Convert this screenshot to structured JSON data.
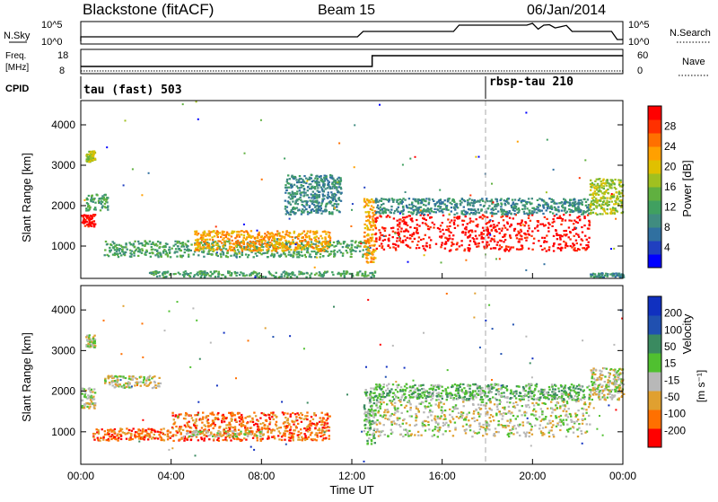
{
  "header": {
    "station": "Blackstone (fitACF)",
    "beam": "Beam 15",
    "date": "06/Jan/2014"
  },
  "top_panels": {
    "nsky_label": "N.Sky",
    "nsearch_label": "N.Search",
    "freq_label": "Freq.",
    "freq_unit": "[MHz]",
    "nave_label": "Nave",
    "cpid_label": "CPID",
    "nsky_ticks": [
      "10^5",
      "10^0"
    ],
    "nsearch_ticks": [
      "10^5",
      "10^0"
    ],
    "freq_ticks": [
      "18",
      "8"
    ],
    "nave_ticks": [
      "60",
      "0"
    ],
    "cpid_segments": [
      {
        "label": "tau (fast) 503",
        "start_hour": 0
      },
      {
        "label": "rbsp-tau 210",
        "start_hour": 18
      }
    ]
  },
  "colorbars": {
    "power": {
      "label": "Power [dB]",
      "ticks": [
        "28",
        "24",
        "20",
        "16",
        "12",
        "8",
        "4"
      ],
      "colors": [
        "#0000ff",
        "#2040c0",
        "#3070a0",
        "#408c80",
        "#40a060",
        "#60b040",
        "#a0c020",
        "#e0c000",
        "#ffa000",
        "#ff7000",
        "#ff3000",
        "#ff0000"
      ]
    },
    "velocity": {
      "label": "Velocity",
      "unit": "[m s⁻¹]",
      "ticks": [
        "200",
        "100",
        "50",
        "15",
        "-15",
        "-50",
        "-100",
        "-200"
      ],
      "colors": [
        "#1030c0",
        "#2050b0",
        "#3a8a60",
        "#50c030",
        "#b8b8b8",
        "#e0a030",
        "#ff7000",
        "#ff0000"
      ]
    }
  },
  "chart_data": [
    {
      "type": "heatmap",
      "name": "power",
      "title": "Power",
      "xlabel": "Time UT",
      "ylabel": "Slant Range [km]",
      "xlim": [
        0,
        24
      ],
      "ylim": [
        200,
        4600
      ],
      "yticks": [
        "4000",
        "3000",
        "2000",
        "1000"
      ],
      "series": [
        {
          "t0": 0,
          "t1": 0.6,
          "r0": 1500,
          "r1": 1800,
          "power": 28
        },
        {
          "t0": 0.2,
          "t1": 1.2,
          "r0": 1900,
          "r1": 2300,
          "power": 12
        },
        {
          "t0": 0.2,
          "t1": 0.6,
          "r0": 3100,
          "r1": 3400,
          "power": 16
        },
        {
          "t0": 1.0,
          "t1": 12.8,
          "r0": 750,
          "r1": 1150,
          "power": 12
        },
        {
          "t0": 5,
          "t1": 11,
          "r0": 900,
          "r1": 1400,
          "power": 20
        },
        {
          "t0": 3,
          "t1": 13,
          "r0": 250,
          "r1": 400,
          "power": 12
        },
        {
          "t0": 9,
          "t1": 11.5,
          "r0": 1800,
          "r1": 2800,
          "power": 8
        },
        {
          "t0": 12.5,
          "t1": 13,
          "r0": 600,
          "r1": 2200,
          "power": 20
        },
        {
          "t0": 13,
          "t1": 22.5,
          "r0": 900,
          "r1": 1800,
          "power": 28
        },
        {
          "t0": 13,
          "t1": 22.5,
          "r0": 1800,
          "r1": 2200,
          "power": 8
        },
        {
          "t0": 22.5,
          "t1": 24,
          "r0": 1800,
          "r1": 2700,
          "power": 16
        },
        {
          "t0": 22.5,
          "t1": 24,
          "r0": 250,
          "r1": 350,
          "power": 8
        }
      ]
    },
    {
      "type": "heatmap",
      "name": "velocity",
      "title": "Velocity",
      "xlabel": "Time UT",
      "ylabel": "Slant Range [km]",
      "xlim": [
        0,
        24
      ],
      "ylim": [
        200,
        4600
      ],
      "xticks": [
        "00:00",
        "04:00",
        "08:00",
        "12:00",
        "16:00",
        "20:00",
        "00:00"
      ],
      "yticks": [
        "4000",
        "3000",
        "2000",
        "1000"
      ],
      "series": [
        {
          "t0": 0,
          "t1": 0.6,
          "r0": 1600,
          "r1": 2100,
          "velocity": 0
        },
        {
          "t0": 0.2,
          "t1": 0.6,
          "r0": 3100,
          "r1": 3400,
          "velocity": 0
        },
        {
          "t0": 1.0,
          "t1": 3.5,
          "r0": 2100,
          "r1": 2400,
          "velocity": 0
        },
        {
          "t0": 0.5,
          "t1": 4,
          "r0": 800,
          "r1": 1100,
          "velocity": -50
        },
        {
          "t0": 4,
          "t1": 11,
          "r0": 800,
          "r1": 1500,
          "velocity": -50
        },
        {
          "t0": 4.5,
          "t1": 8,
          "r0": 900,
          "r1": 1050,
          "velocity": 0
        },
        {
          "t0": 12.5,
          "t1": 13,
          "r0": 700,
          "r1": 2100,
          "velocity": 20
        },
        {
          "t0": 13,
          "t1": 22.5,
          "r0": 900,
          "r1": 1800,
          "velocity": 0
        },
        {
          "t0": 13,
          "t1": 22.5,
          "r0": 1800,
          "r1": 2200,
          "velocity": 15
        },
        {
          "t0": 22.5,
          "t1": 24,
          "r0": 1800,
          "r1": 2600,
          "velocity": 0
        }
      ]
    }
  ]
}
